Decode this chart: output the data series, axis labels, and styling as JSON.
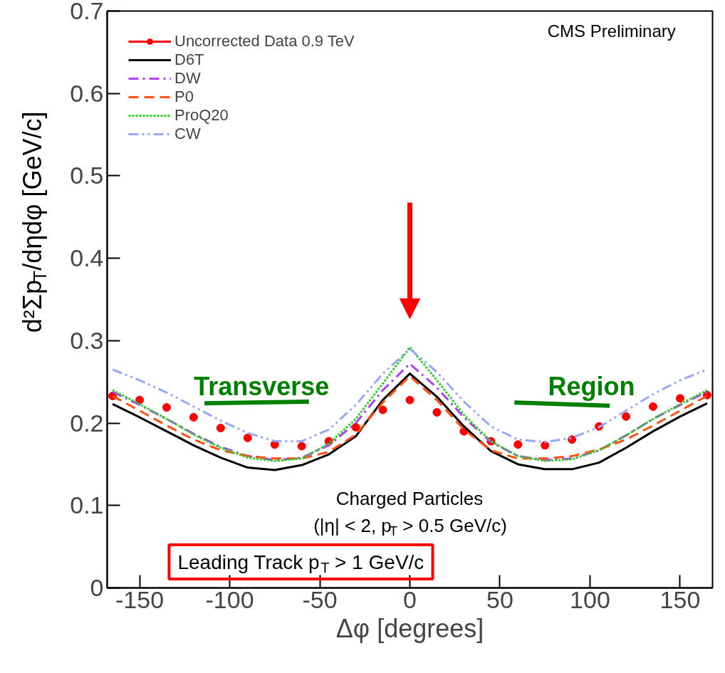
{
  "chart_data": {
    "type": "line",
    "xlabel": "Δφ [degrees]",
    "ylabel": "d²Σp$_{T}$/dηdφ [GeV/c]",
    "xlim": [
      -168,
      168
    ],
    "xticks": [
      -150,
      -100,
      -50,
      0,
      50,
      100,
      150
    ],
    "ylim": [
      0,
      0.7
    ],
    "yticks": [
      0,
      0.1,
      0.2,
      0.3,
      0.4,
      0.5,
      0.6,
      0.7
    ],
    "grid": false,
    "legend": "top left",
    "x": [
      -165,
      -150,
      -135,
      -120,
      -105,
      -90,
      -75,
      -60,
      -45,
      -30,
      -15,
      0,
      15,
      30,
      45,
      60,
      75,
      90,
      105,
      120,
      135,
      150,
      165
    ],
    "series": [
      {
        "name": "Uncorrected Data 0.9 TeV",
        "type": "scatter",
        "marker": "circle",
        "color": "#ff0000",
        "values": [
          0.233,
          0.228,
          0.219,
          0.207,
          0.194,
          0.182,
          0.174,
          0.172,
          0.178,
          0.195,
          0.216,
          0.228,
          0.213,
          0.19,
          0.178,
          0.174,
          0.173,
          0.18,
          0.196,
          0.208,
          0.22,
          0.23,
          0.234
        ]
      },
      {
        "name": "D6T",
        "line_style": "solid",
        "color": "#000000",
        "values": [
          0.223,
          0.207,
          0.19,
          0.173,
          0.158,
          0.146,
          0.143,
          0.149,
          0.162,
          0.184,
          0.228,
          0.26,
          0.232,
          0.196,
          0.166,
          0.15,
          0.144,
          0.144,
          0.152,
          0.17,
          0.19,
          0.208,
          0.224
        ]
      },
      {
        "name": "DW",
        "line_style": "dashdot",
        "color": "#b040ff",
        "values": [
          0.238,
          0.222,
          0.205,
          0.187,
          0.171,
          0.16,
          0.155,
          0.158,
          0.173,
          0.2,
          0.24,
          0.272,
          0.243,
          0.207,
          0.177,
          0.16,
          0.155,
          0.157,
          0.167,
          0.185,
          0.205,
          0.222,
          0.238
        ]
      },
      {
        "name": "P0",
        "line_style": "dashed",
        "color": "#ff5010",
        "values": [
          0.233,
          0.215,
          0.197,
          0.18,
          0.167,
          0.16,
          0.157,
          0.157,
          0.165,
          0.186,
          0.225,
          0.257,
          0.228,
          0.192,
          0.167,
          0.157,
          0.157,
          0.16,
          0.168,
          0.18,
          0.197,
          0.215,
          0.233
        ]
      },
      {
        "name": "ProQ20",
        "line_style": "dotted",
        "color": "#30d020",
        "values": [
          0.24,
          0.223,
          0.205,
          0.186,
          0.17,
          0.158,
          0.154,
          0.157,
          0.175,
          0.205,
          0.248,
          0.292,
          0.252,
          0.21,
          0.178,
          0.16,
          0.154,
          0.156,
          0.167,
          0.185,
          0.205,
          0.223,
          0.24
        ]
      },
      {
        "name": "CW",
        "line_style": "dashdotdot",
        "color": "#98a8f8",
        "values": [
          0.265,
          0.252,
          0.237,
          0.22,
          0.203,
          0.188,
          0.178,
          0.178,
          0.192,
          0.222,
          0.26,
          0.29,
          0.262,
          0.226,
          0.196,
          0.18,
          0.177,
          0.182,
          0.195,
          0.215,
          0.235,
          0.252,
          0.265
        ]
      },
      {
        "type": "line",
        "line_style": "solid",
        "color": "#008000",
        "x": [
          -114,
          -56
        ],
        "values": [
          0.224,
          0.226
        ]
      },
      {
        "type": "line",
        "line_style": "solid",
        "color": "#008000",
        "x": [
          58,
          111
        ],
        "values": [
          0.225,
          0.221
        ]
      }
    ],
    "annotations": [
      "Transverse",
      "Region",
      "CMS Preliminary",
      "Charged Particles",
      "(|η| < 2, p$_{T}$ > 0.5 GeV/c)",
      "Leading Track p$_{T}$ > 1 GeV/c"
    ]
  }
}
